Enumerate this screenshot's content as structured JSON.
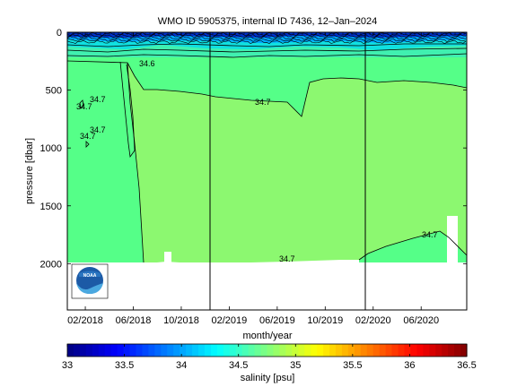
{
  "chart_data": {
    "type": "heatmap",
    "title": "WMO ID 5905375, internal ID 7436, 12–Jan–2024",
    "xlabel": "month/year",
    "ylabel": "pressure [dbar]",
    "x_ticks": [
      "02/2018",
      "06/2018",
      "10/2018",
      "02/2019",
      "06/2019",
      "10/2019",
      "02/2020",
      "06/2020"
    ],
    "y_ticks": [
      0,
      500,
      1000,
      1500,
      2000
    ],
    "ylim": [
      2400,
      0
    ],
    "xlim": [
      "2018-01",
      "2020-10"
    ],
    "profile_gaps": [
      "2019-01",
      "2020-01"
    ],
    "colorbar": {
      "label": "salinity [psu]",
      "ticks": [
        33,
        33.5,
        34,
        34.5,
        35,
        35.5,
        36,
        36.5
      ],
      "range": [
        33,
        36.5
      ]
    },
    "fill_colors": {
      "surface_fresh": "#0033cc",
      "upper_mid": "#00aaff",
      "upper_light": "#10e0e0",
      "thermocline": "#40f0b0",
      "s34_6": "#55ff88",
      "s34_7": "#8cf870"
    },
    "contour_labels": [
      "34.6",
      "34.7",
      "34.7",
      "34.7",
      "34.7",
      "34.7",
      "34.7",
      "34.7"
    ],
    "logo": "NOAA"
  }
}
